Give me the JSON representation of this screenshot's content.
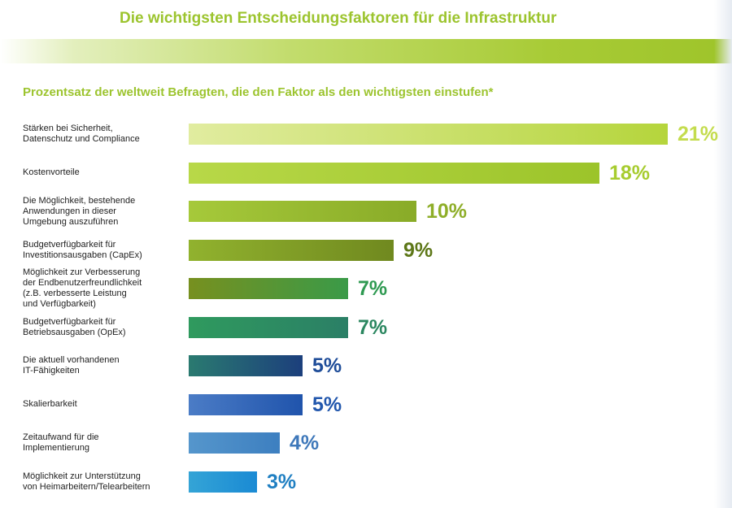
{
  "header": {
    "title": "Die wichtigsten Entscheidungsfaktoren für die Infrastruktur",
    "subtitle": "Prozentsatz der weltweit Befragten, die den Faktor als den wichtigsten einstufen*"
  },
  "chart_data": {
    "type": "bar",
    "orientation": "horizontal",
    "title": "Die wichtigsten Entscheidungsfaktoren für die Infrastruktur",
    "subtitle": "Prozentsatz der weltweit Befragten, die den Faktor als den wichtigsten einstufen*",
    "value_unit": "%",
    "xlim": [
      0,
      21
    ],
    "grid": false,
    "legend": "none",
    "bars": [
      {
        "label": "Stärken bei Sicherheit,\nDatenschutz und Compliance",
        "value": 21,
        "value_label": "21%",
        "colors": [
          "#e1eca0",
          "#b5d53c"
        ],
        "label_color": "#c4dc4e"
      },
      {
        "label": "Kostenvorteile",
        "value": 18,
        "value_label": "18%",
        "colors": [
          "#b8d848",
          "#9cc42a"
        ],
        "label_color": "#a7cc2f"
      },
      {
        "label": "Die Möglichkeit, bestehende\nAnwendungen in dieser\nUmgebung auszuführen",
        "value": 10,
        "value_label": "10%",
        "colors": [
          "#a6c93a",
          "#89ab28"
        ],
        "label_color": "#8eae28"
      },
      {
        "label": "Budgetverfügbarkeit für\nInvestitionsausgaben (CapEx)",
        "value": 9,
        "value_label": "9%",
        "colors": [
          "#91b22e",
          "#70891f"
        ],
        "label_color": "#5d7718"
      },
      {
        "label": "Möglichkeit zur Verbesserung\nder Endbenutzerfreundlichkeit\n(z.B. verbesserte Leistung\nund Verfügbarkeit)",
        "value": 7,
        "value_label": "7%",
        "colors": [
          "#77901f",
          "#3a9a48"
        ],
        "label_color": "#2f9a52"
      },
      {
        "label": "Budgetverfügbarkeit für\nBetriebsausgaben (OpEx)",
        "value": 7,
        "value_label": "7%",
        "colors": [
          "#2f9a5e",
          "#2b7f66"
        ],
        "label_color": "#2b8760"
      },
      {
        "label": "Die aktuell vorhandenen\nIT-Fähigkeiten",
        "value": 5,
        "value_label": "5%",
        "colors": [
          "#2a7a70",
          "#1c3f7c"
        ],
        "label_color": "#1f4d99"
      },
      {
        "label": "Skalierbarkeit",
        "value": 5,
        "value_label": "5%",
        "colors": [
          "#4b7cc6",
          "#2054ac"
        ],
        "label_color": "#2257ad"
      },
      {
        "label": "Zeitaufwand für die\nImplementierung",
        "value": 4,
        "value_label": "4%",
        "colors": [
          "#5596cc",
          "#3d7fc0"
        ],
        "label_color": "#3e78ba"
      },
      {
        "label": "Möglichkeit zur Unterstützung\nvon Heimarbeitern/Telearbeitern",
        "value": 3,
        "value_label": "3%",
        "colors": [
          "#34a4d6",
          "#1a8ad4"
        ],
        "label_color": "#1f7fc2"
      }
    ]
  }
}
